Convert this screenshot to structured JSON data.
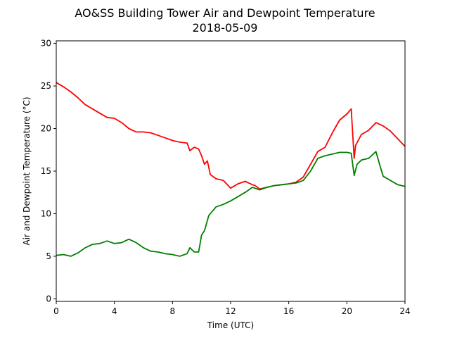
{
  "chart_data": {
    "type": "line",
    "title": "AO&SS Building Tower Air and Dewpoint Temperature",
    "subtitle": "2018-05-09",
    "xlabel": "Time (UTC)",
    "ylabel": "Air and Dewpoint Temperature (°C)",
    "xlim": [
      0,
      24
    ],
    "ylim": [
      -0.3,
      30.3
    ],
    "xticks": [
      0,
      4,
      8,
      12,
      16,
      20,
      24
    ],
    "yticks": [
      0,
      5,
      10,
      15,
      20,
      25,
      30
    ],
    "grid": false,
    "series": [
      {
        "color": "#ff0000",
        "x": [
          0,
          0.5,
          1,
          1.5,
          2,
          2.5,
          3,
          3.5,
          4,
          4.5,
          5,
          5.5,
          6,
          6.5,
          7,
          7.5,
          8,
          8.5,
          9,
          9.2,
          9.5,
          9.8,
          10,
          10.2,
          10.4,
          10.6,
          11,
          11.5,
          12,
          12.5,
          13,
          13.5,
          13.7
        ],
        "y": [
          25.4,
          24.9,
          24.3,
          23.6,
          22.8,
          22.3,
          21.8,
          21.3,
          21.2,
          20.7,
          20.0,
          19.6,
          19.6,
          19.5,
          19.2,
          18.9,
          18.6,
          18.4,
          18.3,
          17.4,
          17.8,
          17.6,
          16.8,
          15.8,
          16.2,
          14.6,
          14.1,
          13.9,
          13.0,
          13.5,
          13.8,
          13.4,
          13.3
        ]
      },
      {
        "color": "#ff0000",
        "x": [
          13.7,
          14,
          14.5,
          15,
          15.5,
          16,
          16.5,
          17,
          17.5,
          18,
          18.5,
          19,
          19.5,
          20,
          20.3,
          20.5,
          20.6,
          21,
          21.5,
          22,
          22.5,
          23,
          23.5,
          24
        ],
        "y": [
          13.3,
          12.9,
          13.1,
          13.3,
          13.4,
          13.5,
          13.7,
          14.3,
          15.8,
          17.3,
          17.8,
          19.5,
          21.0,
          21.7,
          22.3,
          16.5,
          18.0,
          19.3,
          19.8,
          20.7,
          20.3,
          19.7,
          18.8,
          17.9
        ]
      },
      {
        "color": "#008000",
        "x": [
          0,
          0.5,
          1,
          1.5,
          2,
          2.5,
          3,
          3.5,
          4,
          4.5,
          5,
          5.5,
          6,
          6.5,
          7,
          7.5,
          8,
          8.5,
          9,
          9.2,
          9.5,
          9.8,
          10,
          10.2,
          10.5,
          11,
          11.5,
          12,
          12.5,
          13,
          13.5,
          14,
          14.5,
          15,
          15.5,
          16,
          16.5,
          17,
          17.5,
          18,
          18.5,
          19,
          19.5,
          20,
          20.3,
          20.5,
          20.7,
          21,
          21.5,
          22,
          22.3,
          22.5,
          23,
          23.5,
          24
        ],
        "y": [
          5.1,
          5.2,
          5.0,
          5.4,
          6.0,
          6.4,
          6.5,
          6.8,
          6.5,
          6.6,
          7.0,
          6.6,
          6.0,
          5.6,
          5.5,
          5.3,
          5.2,
          5.0,
          5.3,
          6.0,
          5.5,
          5.5,
          7.5,
          8.0,
          9.8,
          10.8,
          11.1,
          11.5,
          12.0,
          12.5,
          13.1,
          12.8,
          13.1,
          13.3,
          13.4,
          13.5,
          13.6,
          13.9,
          15.0,
          16.5,
          16.8,
          17.0,
          17.2,
          17.2,
          17.1,
          14.5,
          15.8,
          16.3,
          16.5,
          17.3,
          15.5,
          14.4,
          13.9,
          13.4,
          13.2
        ]
      }
    ]
  }
}
